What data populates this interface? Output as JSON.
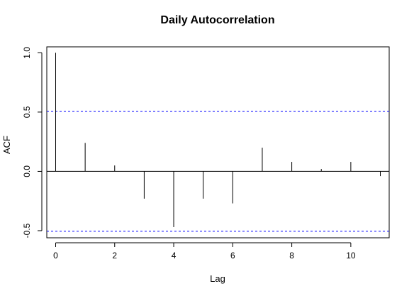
{
  "chart_data": {
    "type": "bar",
    "title": "Daily Autocorrelation",
    "xlabel": "Lag",
    "ylabel": "ACF",
    "xlim": [
      -0.3,
      11.3
    ],
    "ylim": [
      -0.56,
      1.05
    ],
    "x_ticks": [
      "0",
      "2",
      "4",
      "6",
      "8",
      "10"
    ],
    "y_ticks": [
      "-0.5",
      "0.0",
      "0.5",
      "1.0"
    ],
    "lags": [
      0,
      1,
      2,
      3,
      4,
      5,
      6,
      7,
      8,
      9,
      10,
      11
    ],
    "acf": [
      1.0,
      0.24,
      0.05,
      -0.23,
      -0.47,
      -0.23,
      -0.27,
      0.2,
      0.08,
      0.02,
      0.08,
      -0.04
    ],
    "confidence_bounds": [
      0.505,
      -0.505
    ],
    "grid": false,
    "colors": {
      "bars": "#000000",
      "bounds": "#0000ff",
      "zero_line": "#000000"
    }
  }
}
